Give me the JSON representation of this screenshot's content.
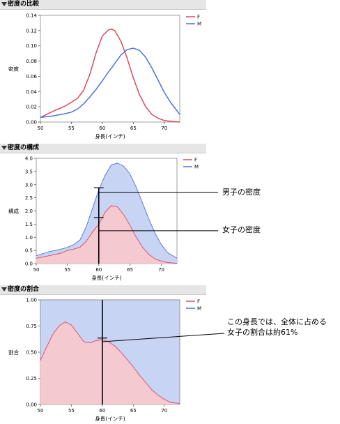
{
  "panels": [
    {
      "title": "密度の比較",
      "y_label": "密度",
      "x_label": "身長(インチ)",
      "legend": [
        {
          "label": "F",
          "color": "#d94a5a"
        },
        {
          "label": "M",
          "color": "#4a72d9"
        }
      ],
      "y_ticks": [
        "0.14",
        "0.12",
        "0.10",
        "0.08",
        "0.06",
        "0.04",
        "0.02",
        "0.00"
      ],
      "x_ticks": [
        "50",
        "55",
        "60",
        "65",
        "70"
      ]
    },
    {
      "title": "密度の構成",
      "y_label": "構成",
      "x_label": "身長(インチ)",
      "legend": [
        {
          "label": "F",
          "color": "#d94a5a"
        },
        {
          "label": "M",
          "color": "#4a72d9"
        }
      ],
      "y_ticks": [
        "4.0",
        "3.5",
        "3.0",
        "2.5",
        "2.0",
        "1.5",
        "1.0",
        "0.5",
        "0.0"
      ],
      "x_ticks": [
        "50",
        "55",
        "60",
        "65",
        "70"
      ],
      "annotations": [
        "男子の密度",
        "女子の密度"
      ]
    },
    {
      "title": "密度の割合",
      "y_label": "割合",
      "x_label": "身長(インチ)",
      "legend": [
        {
          "label": "F",
          "color": "#d94a5a"
        },
        {
          "label": "M",
          "color": "#4a72d9"
        }
      ],
      "y_ticks": [
        "1.00",
        "0.75",
        "0.50",
        "0.25",
        "0.00"
      ],
      "x_ticks": [
        "50",
        "55",
        "60",
        "65",
        "70"
      ],
      "annotation_lines": [
        "この身長では、全体に占める",
        "女子の割合は約61%"
      ]
    }
  ],
  "colors": {
    "female": "#d94a5a",
    "male": "#4a72d9",
    "female_fill": "#f4c9d0",
    "male_fill": "#c7d4f4"
  },
  "chart_data": [
    {
      "type": "line",
      "title": "密度の比較",
      "xlabel": "身長(インチ)",
      "ylabel": "密度",
      "xlim": [
        50,
        72.5
      ],
      "ylim": [
        0,
        0.14
      ],
      "x": [
        50,
        52,
        54,
        55,
        56,
        57,
        58,
        59,
        60,
        61,
        61.5,
        62,
        63,
        64,
        65,
        66,
        67,
        68,
        69,
        70,
        71,
        72.5
      ],
      "series": [
        {
          "name": "F",
          "values": [
            0.006,
            0.014,
            0.021,
            0.026,
            0.031,
            0.042,
            0.063,
            0.091,
            0.113,
            0.121,
            0.122,
            0.12,
            0.106,
            0.084,
            0.058,
            0.036,
            0.02,
            0.01,
            0.005,
            0.002,
            0.001,
            0.0
          ]
        },
        {
          "name": "M",
          "values": [
            0.006,
            0.008,
            0.011,
            0.013,
            0.017,
            0.024,
            0.033,
            0.043,
            0.054,
            0.066,
            0.071,
            0.077,
            0.088,
            0.095,
            0.097,
            0.094,
            0.085,
            0.071,
            0.055,
            0.039,
            0.026,
            0.01
          ]
        }
      ],
      "legend": "top-right"
    },
    {
      "type": "area",
      "title": "密度の構成",
      "xlabel": "身長(インチ)",
      "ylabel": "構成",
      "xlim": [
        50,
        72.5
      ],
      "ylim": [
        0,
        4.0
      ],
      "x": [
        50,
        52,
        54,
        55,
        56,
        57,
        58,
        59,
        60,
        61,
        62,
        63,
        64,
        65,
        66,
        67,
        68,
        69,
        70,
        71,
        72.5
      ],
      "series": [
        {
          "name": "F",
          "values": [
            0.2,
            0.3,
            0.4,
            0.5,
            0.55,
            0.62,
            0.85,
            1.2,
            1.5,
            1.95,
            2.2,
            2.15,
            1.85,
            1.45,
            1.0,
            0.62,
            0.35,
            0.18,
            0.09,
            0.04,
            0.01
          ]
        },
        {
          "name": "M",
          "values": [
            0.3,
            0.45,
            0.55,
            0.62,
            0.72,
            0.9,
            1.4,
            2.1,
            2.8,
            3.35,
            3.75,
            3.82,
            3.7,
            3.4,
            2.9,
            2.3,
            1.7,
            1.15,
            0.72,
            0.42,
            0.2
          ]
        }
      ],
      "legend": "top-right"
    },
    {
      "type": "area",
      "title": "密度の割合",
      "xlabel": "身長(インチ)",
      "ylabel": "割合",
      "xlim": [
        50,
        72.5
      ],
      "ylim": [
        0,
        1.0
      ],
      "x": [
        50,
        51,
        52,
        53,
        54,
        55,
        56,
        57,
        58,
        59,
        60,
        61,
        62,
        63,
        64,
        65,
        66,
        67,
        68,
        69,
        70,
        71,
        72.5
      ],
      "series": [
        {
          "name": "F",
          "values": [
            0.42,
            0.55,
            0.67,
            0.75,
            0.79,
            0.76,
            0.68,
            0.6,
            0.59,
            0.61,
            0.62,
            0.6,
            0.56,
            0.5,
            0.43,
            0.36,
            0.28,
            0.21,
            0.14,
            0.09,
            0.05,
            0.02,
            0.01
          ]
        },
        {
          "name": "M",
          "values": [
            1,
            1,
            1,
            1,
            1,
            1,
            1,
            1,
            1,
            1,
            1,
            1,
            1,
            1,
            1,
            1,
            1,
            1,
            1,
            1,
            1,
            1,
            1
          ]
        }
      ],
      "legend": "top-right"
    }
  ]
}
